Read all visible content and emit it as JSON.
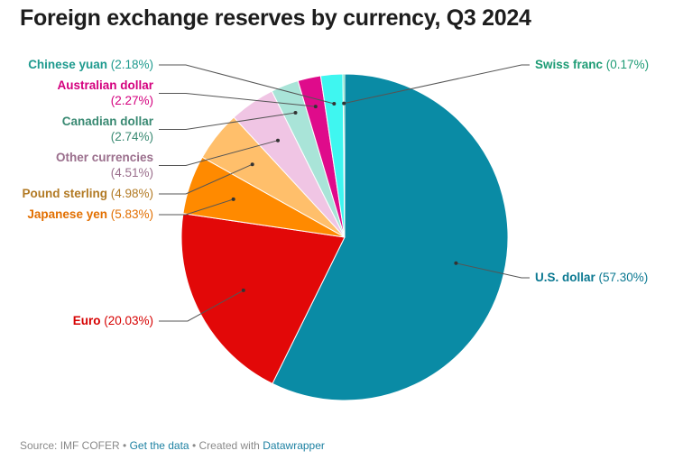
{
  "title": "Foreign exchange reserves by currency, Q3 2024",
  "footer": {
    "source": "Source: IMF COFER",
    "sep1": " • ",
    "get_data": "Get the data",
    "sep2": " • Created with ",
    "datawrapper": "Datawrapper"
  },
  "chart_data": {
    "type": "pie",
    "title": "Foreign exchange reserves by currency, Q3 2024",
    "slices": [
      {
        "label": "U.S. dollar",
        "value": 57.3,
        "display": "(57.30%)",
        "color": "#0a8ba5",
        "text_color": "#0a7891"
      },
      {
        "label": "Euro",
        "value": 20.03,
        "display": "(20.03%)",
        "color": "#e20808",
        "text_color": "#d60000"
      },
      {
        "label": "Japanese yen",
        "value": 5.83,
        "display": "(5.83%)",
        "color": "#ff8a00",
        "text_color": "#e26f00"
      },
      {
        "label": "Pound sterling",
        "value": 4.98,
        "display": "(4.98%)",
        "color": "#ffbf6b",
        "text_color": "#b27a24"
      },
      {
        "label": "Other currencies",
        "value": 4.51,
        "display": "(4.51%)",
        "color": "#f0c5e4",
        "text_color": "#9a6e8c"
      },
      {
        "label": "Canadian dollar",
        "value": 2.74,
        "display": "(2.74%)",
        "color": "#a9e4d8",
        "text_color": "#3a8a73"
      },
      {
        "label": "Australian dollar",
        "value": 2.27,
        "display": "(2.27%)",
        "color": "#df0b8b",
        "text_color": "#d4007e"
      },
      {
        "label": "Chinese yuan",
        "value": 2.18,
        "display": "(2.18%)",
        "color": "#3ff6f0",
        "text_color": "#1e9a8e"
      },
      {
        "label": "Swiss franc",
        "value": 0.17,
        "display": "(0.17%)",
        "color": "#34d1a8",
        "text_color": "#1c9b74"
      }
    ]
  }
}
